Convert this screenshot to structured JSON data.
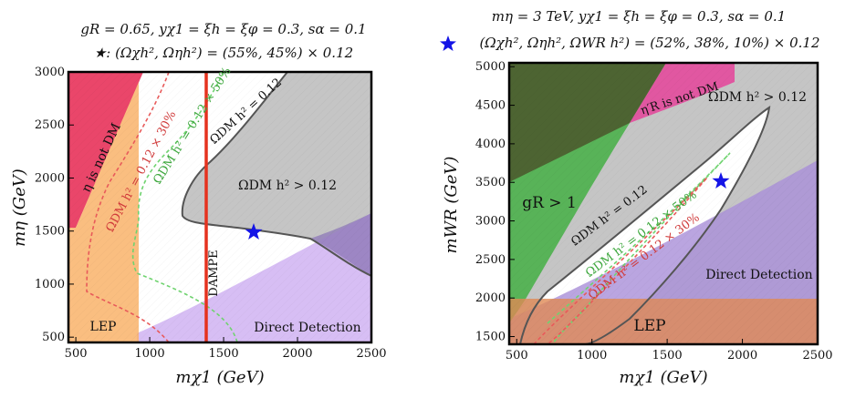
{
  "chart_data": [
    {
      "type": "area",
      "header_line1": "gR = 0.65,  yχ1 = ξh = ξφ = 0.3,  sα = 0.1",
      "header_line2": "★: (Ωχh², Ωηh²) = (55%, 45%) × 0.12",
      "xlabel": "mχ1 (GeV)",
      "ylabel": "mη (GeV)",
      "xlim": [
        450,
        2500
      ],
      "ylim": [
        450,
        3000
      ],
      "xticks": [
        "500",
        "1000",
        "1500",
        "2000",
        "2500"
      ],
      "yticks": [
        "500",
        "1000",
        "1500",
        "2000",
        "2500",
        "3000"
      ],
      "regions": [
        {
          "name": "η is not DM",
          "color": "#e8325a"
        },
        {
          "name": "LEP",
          "color": "#f9b36a"
        },
        {
          "name": "ΩDM h² > 0.12",
          "color": "#c2c2c2"
        },
        {
          "name": "Direct Detection",
          "color": "#c9a8f0"
        },
        {
          "name": "DAMPE",
          "color": "#e5321f"
        }
      ],
      "contours": [
        {
          "name": "ΩDM h² = 0.12",
          "color": "#555555"
        },
        {
          "name": "ΩDM h² = 0.12 × 50%",
          "color": "#6fd36f"
        },
        {
          "name": "ΩDM h² = 0.12 × 30%",
          "color": "#e85a5a"
        }
      ],
      "benchmark": {
        "x": 1700,
        "y": 1510
      },
      "dampe_x": 1390
    },
    {
      "type": "area",
      "header_line1": "mη = 3 TeV,  yχ1 = ξh = ξφ = 0.3,  sα = 0.1",
      "header_line2": "(Ωχh², Ωηh², ΩWR h²) = (52%, 38%, 10%) × 0.12",
      "xlabel": "mχ1 (GeV)",
      "ylabel": "mWR (GeV)",
      "xlim": [
        450,
        2500
      ],
      "ylim": [
        1400,
        5050
      ],
      "xticks": [
        "500",
        "1000",
        "1500",
        "2000",
        "2500"
      ],
      "yticks": [
        "1500",
        "2000",
        "2500",
        "3000",
        "3500",
        "4000",
        "4500",
        "5000"
      ],
      "regions": [
        {
          "name": "gR > 1",
          "color": "#4bb04b"
        },
        {
          "name": "η′R is not DM",
          "color": "#e34a9c"
        },
        {
          "name": "ΩDM h² > 0.12",
          "color": "#c2c2c2"
        },
        {
          "name": "Direct Detection",
          "color": "#a98fd8"
        },
        {
          "name": "LEP",
          "color": "#e08a55"
        }
      ],
      "contours": [
        {
          "name": "ΩDM h² = 0.12",
          "color": "#555555"
        },
        {
          "name": "ΩDM h² = 0.12 × 50%",
          "color": "#6fd36f"
        },
        {
          "name": "ΩDM h² = 0.12 × 30%",
          "color": "#e85a5a"
        }
      ],
      "benchmark": {
        "x": 1880,
        "y": 3550
      }
    }
  ]
}
